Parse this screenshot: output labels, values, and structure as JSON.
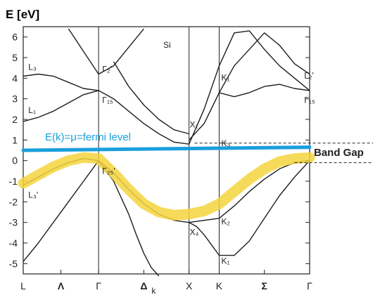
{
  "chart_data": {
    "type": "line",
    "title": "",
    "ylabel": "E [eV]",
    "xlabel": "k",
    "ylim": [
      -5.5,
      6.5
    ],
    "yticks": [
      6,
      5,
      4,
      3,
      2,
      1,
      0,
      -1,
      -2,
      -3,
      -4,
      -5
    ],
    "xticks": [
      {
        "label": "L",
        "x": 0
      },
      {
        "label": "Λ",
        "x": 0.25
      },
      {
        "label": "Γ",
        "x": 0.5
      },
      {
        "label": "Δ",
        "x": 0.8
      },
      {
        "label": "X",
        "x": 1.1
      },
      {
        "label": "K",
        "x": 1.3
      },
      {
        "label": "Σ",
        "x": 1.6
      },
      {
        "label": "Γ",
        "x": 1.9
      }
    ],
    "axis_sublabel": "k",
    "material_label": "Si",
    "symmetry_verticals": [
      0.5,
      1.1,
      1.3
    ],
    "series": [
      {
        "x": [
          0,
          0.1,
          0.2,
          0.3,
          0.4,
          0.5
        ],
        "y": [
          4.1,
          4.2,
          4.1,
          3.8,
          3.5,
          3.4
        ]
      },
      {
        "x": [
          0,
          0.1,
          0.2,
          0.3,
          0.4,
          0.5
        ],
        "y": [
          1.9,
          2.1,
          2.4,
          2.8,
          3.2,
          3.4
        ]
      },
      {
        "x": [
          0,
          0.1,
          0.2,
          0.3,
          0.4,
          0.5
        ],
        "y": [
          -1.2,
          -0.8,
          -0.4,
          -0.1,
          0.1,
          0
        ]
      },
      {
        "x": [
          0,
          0.1,
          0.2,
          0.3,
          0.4,
          0.5
        ],
        "y": [
          -4.9,
          -4.0,
          -3.0,
          -2.0,
          -1.0,
          0
        ]
      },
      {
        "x": [
          0.3,
          0.4,
          0.5,
          0.6,
          0.7,
          0.8
        ],
        "y": [
          6.4,
          5.3,
          4.2,
          4.6,
          5.5,
          6.4
        ]
      },
      {
        "x": [
          0.5,
          0.6,
          0.7,
          0.8,
          0.9,
          1.0,
          1.1
        ],
        "y": [
          3.4,
          3.0,
          2.4,
          1.8,
          1.3,
          0.9,
          0.8
        ]
      },
      {
        "x": [
          0.5,
          0.6,
          0.7,
          0.75,
          0.8,
          0.85,
          0.9
        ],
        "y": [
          0,
          -1.0,
          -2.6,
          -3.6,
          -4.5,
          -5.2,
          -5.6
        ]
      },
      {
        "x": [
          0.5,
          0.6,
          0.7,
          0.8,
          0.9,
          1.0,
          1.1
        ],
        "y": [
          0,
          -0.6,
          -1.4,
          -2.1,
          -2.6,
          -2.9,
          -3.0
        ]
      },
      {
        "x": [
          0.6,
          0.7,
          0.8,
          0.9,
          1.0,
          1.1
        ],
        "y": [
          4.8,
          3.6,
          2.7,
          2.0,
          1.5,
          1.3
        ]
      },
      {
        "x": [
          1.1,
          1.2,
          1.3,
          1.4,
          1.5,
          1.6,
          1.7,
          1.8,
          1.9
        ],
        "y": [
          0.8,
          2.5,
          4.6,
          6.2,
          6.3,
          5.4,
          4.6,
          4.0,
          3.4
        ]
      },
      {
        "x": [
          1.1,
          1.2,
          1.3,
          1.4,
          1.5,
          1.6,
          1.7,
          1.8,
          1.9
        ],
        "y": [
          1.0,
          1.8,
          3.3,
          4.6,
          5.4,
          6.2,
          5.6,
          4.7,
          4.2
        ]
      },
      {
        "x": [
          1.3,
          1.4,
          1.5,
          1.6,
          1.7,
          1.8,
          1.9
        ],
        "y": [
          3.3,
          3.1,
          3.3,
          3.6,
          3.7,
          3.5,
          3.4
        ]
      },
      {
        "x": [
          1.1,
          1.2,
          1.3,
          1.4,
          1.5,
          1.6,
          1.7,
          1.8,
          1.9
        ],
        "y": [
          -3.0,
          -2.9,
          -2.8,
          -2.2,
          -1.5,
          -0.9,
          -0.4,
          -0.1,
          0
        ]
      },
      {
        "x": [
          1.1,
          1.15,
          1.2,
          1.25,
          1.3,
          1.4,
          1.5,
          1.6,
          1.7,
          1.8,
          1.9
        ],
        "y": [
          -3.0,
          -3.2,
          -3.6,
          -4.1,
          -4.6,
          -4.6,
          -3.9,
          -2.8,
          -1.7,
          -0.8,
          0
        ]
      }
    ],
    "point_labels": [
      {
        "text": "L₃",
        "x": 0.02,
        "y": 4.4
      },
      {
        "text": "L₁",
        "x": 0.02,
        "y": 2.3
      },
      {
        "text": "L₃'",
        "x": 0.02,
        "y": -1.8
      },
      {
        "text": "Γ₂'",
        "x": 0.51,
        "y": 4.3
      },
      {
        "text": "Γ₁₅",
        "x": 0.51,
        "y": 2.8
      },
      {
        "text": "Γ₂₅'",
        "x": 0.51,
        "y": -0.65
      },
      {
        "text": "X₁",
        "x": 1.09,
        "y": 1.6
      },
      {
        "text": "X₄",
        "x": 1.09,
        "y": -3.6
      },
      {
        "text": "K₁",
        "x": 1.3,
        "y": 3.9
      },
      {
        "text": "K₃",
        "x": 1.3,
        "y": 0.7
      },
      {
        "text": "K₂",
        "x": 1.3,
        "y": -3.1
      },
      {
        "text": "K₁",
        "x": 1.3,
        "y": -5.0
      },
      {
        "text": "Γ₂'",
        "x": 1.85,
        "y": 4.0
      },
      {
        "text": "Γ₁₅",
        "x": 1.85,
        "y": 2.8
      }
    ],
    "fermi_level": {
      "label": "E(k)=μ=fermi level",
      "y_start": 0.5,
      "y_end": 0.65,
      "color": "#1a9fdc"
    },
    "highlight_band": {
      "x": [
        0,
        0.1,
        0.2,
        0.3,
        0.4,
        0.5,
        0.6,
        0.7,
        0.8,
        0.9,
        1.0,
        1.1,
        1.2,
        1.3,
        1.4,
        1.5,
        1.6,
        1.7,
        1.8,
        1.9
      ],
      "y": [
        -1.1,
        -0.7,
        -0.3,
        0.0,
        0.15,
        0.1,
        -0.6,
        -1.4,
        -2.1,
        -2.5,
        -2.65,
        -2.6,
        -2.45,
        -2.1,
        -1.5,
        -0.9,
        -0.4,
        -0.05,
        0.1,
        0.15
      ],
      "color": "#f5d33c"
    },
    "band_gap": {
      "label": "Band Gap",
      "upper": 0.75,
      "lower": 0.0
    },
    "grid": false,
    "legend": "none"
  }
}
